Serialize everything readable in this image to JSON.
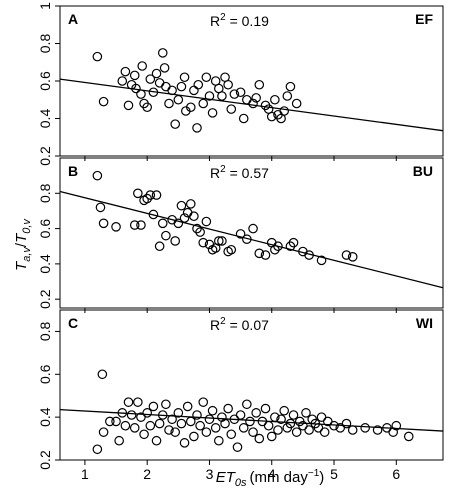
{
  "figure": {
    "ylabel": "T_{a,v}/T_{0,v}",
    "xlabel_main": "ET",
    "xlabel_sub": "0s",
    "xlabel_units": "(mm day",
    "xlabel_exp": "−1",
    "xlabel_close": ")"
  },
  "chart_data": [
    {
      "type": "scatter",
      "panel": "A",
      "site": "EF",
      "r2_text": "R",
      "r2_sup": "2",
      "r2_value": " = 0.19",
      "xlim": [
        0.6,
        6.75
      ],
      "ylim": [
        0.2,
        1.0
      ],
      "xticks": [
        1,
        2,
        3,
        4,
        5,
        6
      ],
      "yticks": [
        0.2,
        0.4,
        0.6,
        0.8,
        1
      ],
      "ytick_labels": [
        "0.2",
        "0.4",
        "0.6",
        "0.8",
        "1"
      ],
      "regression": {
        "x": [
          0.6,
          6.75
        ],
        "y": [
          0.61,
          0.335
        ]
      },
      "points": [
        [
          1.2,
          0.73
        ],
        [
          1.3,
          0.49
        ],
        [
          1.6,
          0.6
        ],
        [
          1.65,
          0.65
        ],
        [
          1.7,
          0.47
        ],
        [
          1.75,
          0.58
        ],
        [
          1.8,
          0.63
        ],
        [
          1.82,
          0.56
        ],
        [
          1.9,
          0.53
        ],
        [
          1.92,
          0.68
        ],
        [
          1.95,
          0.48
        ],
        [
          2.0,
          0.46
        ],
        [
          2.05,
          0.61
        ],
        [
          2.1,
          0.54
        ],
        [
          2.15,
          0.64
        ],
        [
          2.2,
          0.59
        ],
        [
          2.25,
          0.75
        ],
        [
          2.28,
          0.67
        ],
        [
          2.3,
          0.57
        ],
        [
          2.35,
          0.48
        ],
        [
          2.4,
          0.55
        ],
        [
          2.45,
          0.37
        ],
        [
          2.5,
          0.5
        ],
        [
          2.55,
          0.57
        ],
        [
          2.6,
          0.62
        ],
        [
          2.62,
          0.44
        ],
        [
          2.7,
          0.46
        ],
        [
          2.75,
          0.55
        ],
        [
          2.8,
          0.35
        ],
        [
          2.82,
          0.58
        ],
        [
          2.9,
          0.48
        ],
        [
          2.95,
          0.62
        ],
        [
          3.0,
          0.52
        ],
        [
          3.05,
          0.43
        ],
        [
          3.1,
          0.6
        ],
        [
          3.15,
          0.56
        ],
        [
          3.2,
          0.52
        ],
        [
          3.25,
          0.62
        ],
        [
          3.3,
          0.58
        ],
        [
          3.35,
          0.45
        ],
        [
          3.4,
          0.53
        ],
        [
          3.5,
          0.54
        ],
        [
          3.55,
          0.4
        ],
        [
          3.6,
          0.5
        ],
        [
          3.7,
          0.48
        ],
        [
          3.75,
          0.51
        ],
        [
          3.8,
          0.58
        ],
        [
          3.9,
          0.47
        ],
        [
          3.95,
          0.45
        ],
        [
          4.0,
          0.41
        ],
        [
          4.05,
          0.5
        ],
        [
          4.1,
          0.42
        ],
        [
          4.15,
          0.4
        ],
        [
          4.2,
          0.44
        ],
        [
          4.25,
          0.52
        ],
        [
          4.3,
          0.57
        ],
        [
          4.4,
          0.48
        ]
      ]
    },
    {
      "type": "scatter",
      "panel": "B",
      "site": "BU",
      "r2_text": "R",
      "r2_sup": "2",
      "r2_value": " = 0.57",
      "xlim": [
        0.6,
        6.75
      ],
      "ylim": [
        0.15,
        1.0
      ],
      "xticks": [
        1,
        2,
        3,
        4,
        5,
        6
      ],
      "yticks": [
        0.2,
        0.4,
        0.6,
        0.8
      ],
      "ytick_labels": [
        "0.2",
        "0.4",
        "0.6",
        "0.8"
      ],
      "regression": {
        "x": [
          0.6,
          6.75
        ],
        "y": [
          0.81,
          0.265
        ]
      },
      "points": [
        [
          1.2,
          0.9
        ],
        [
          1.25,
          0.72
        ],
        [
          1.3,
          0.63
        ],
        [
          1.5,
          0.61
        ],
        [
          1.8,
          0.62
        ],
        [
          1.85,
          0.8
        ],
        [
          1.9,
          0.62
        ],
        [
          1.95,
          0.76
        ],
        [
          2.0,
          0.77
        ],
        [
          2.05,
          0.79
        ],
        [
          2.1,
          0.68
        ],
        [
          2.15,
          0.79
        ],
        [
          2.2,
          0.5
        ],
        [
          2.25,
          0.63
        ],
        [
          2.3,
          0.56
        ],
        [
          2.4,
          0.65
        ],
        [
          2.45,
          0.53
        ],
        [
          2.5,
          0.63
        ],
        [
          2.55,
          0.73
        ],
        [
          2.6,
          0.66
        ],
        [
          2.65,
          0.69
        ],
        [
          2.7,
          0.74
        ],
        [
          2.75,
          0.67
        ],
        [
          2.8,
          0.6
        ],
        [
          2.85,
          0.58
        ],
        [
          2.9,
          0.52
        ],
        [
          2.95,
          0.64
        ],
        [
          3.0,
          0.51
        ],
        [
          3.05,
          0.48
        ],
        [
          3.1,
          0.49
        ],
        [
          3.15,
          0.53
        ],
        [
          3.2,
          0.53
        ],
        [
          3.3,
          0.47
        ],
        [
          3.35,
          0.48
        ],
        [
          3.5,
          0.57
        ],
        [
          3.6,
          0.54
        ],
        [
          3.7,
          0.6
        ],
        [
          3.8,
          0.46
        ],
        [
          3.9,
          0.45
        ],
        [
          4.0,
          0.52
        ],
        [
          4.05,
          0.48
        ],
        [
          4.1,
          0.5
        ],
        [
          4.3,
          0.5
        ],
        [
          4.35,
          0.52
        ],
        [
          4.5,
          0.47
        ],
        [
          4.6,
          0.45
        ],
        [
          4.8,
          0.42
        ],
        [
          5.2,
          0.45
        ],
        [
          5.3,
          0.44
        ]
      ]
    },
    {
      "type": "scatter",
      "panel": "C",
      "site": "WI",
      "r2_text": "R",
      "r2_sup": "2",
      "r2_value": " = 0.07",
      "xlim": [
        0.6,
        6.75
      ],
      "ylim": [
        0.2,
        0.9
      ],
      "xticks": [
        1,
        2,
        3,
        4,
        5,
        6
      ],
      "yticks": [
        0.2,
        0.4,
        0.6,
        0.8
      ],
      "ytick_labels": [
        "0.2",
        "0.4",
        "0.6",
        "0.8"
      ],
      "regression": {
        "x": [
          0.6,
          6.75
        ],
        "y": [
          0.435,
          0.335
        ]
      },
      "points": [
        [
          1.2,
          0.25
        ],
        [
          1.28,
          0.6
        ],
        [
          1.3,
          0.33
        ],
        [
          1.4,
          0.38
        ],
        [
          1.5,
          0.38
        ],
        [
          1.55,
          0.29
        ],
        [
          1.6,
          0.42
        ],
        [
          1.65,
          0.36
        ],
        [
          1.7,
          0.47
        ],
        [
          1.75,
          0.41
        ],
        [
          1.8,
          0.35
        ],
        [
          1.85,
          0.47
        ],
        [
          1.9,
          0.4
        ],
        [
          1.95,
          0.32
        ],
        [
          2.0,
          0.42
        ],
        [
          2.05,
          0.36
        ],
        [
          2.1,
          0.45
        ],
        [
          2.15,
          0.29
        ],
        [
          2.2,
          0.37
        ],
        [
          2.25,
          0.41
        ],
        [
          2.3,
          0.46
        ],
        [
          2.35,
          0.34
        ],
        [
          2.4,
          0.39
        ],
        [
          2.45,
          0.33
        ],
        [
          2.5,
          0.42
        ],
        [
          2.55,
          0.37
        ],
        [
          2.6,
          0.28
        ],
        [
          2.65,
          0.45
        ],
        [
          2.7,
          0.38
        ],
        [
          2.75,
          0.31
        ],
        [
          2.8,
          0.41
        ],
        [
          2.85,
          0.36
        ],
        [
          2.9,
          0.47
        ],
        [
          2.95,
          0.33
        ],
        [
          3.0,
          0.39
        ],
        [
          3.05,
          0.43
        ],
        [
          3.1,
          0.35
        ],
        [
          3.15,
          0.29
        ],
        [
          3.2,
          0.4
        ],
        [
          3.25,
          0.37
        ],
        [
          3.3,
          0.44
        ],
        [
          3.35,
          0.32
        ],
        [
          3.4,
          0.39
        ],
        [
          3.45,
          0.26
        ],
        [
          3.5,
          0.41
        ],
        [
          3.55,
          0.35
        ],
        [
          3.6,
          0.46
        ],
        [
          3.65,
          0.38
        ],
        [
          3.7,
          0.33
        ],
        [
          3.75,
          0.42
        ],
        [
          3.8,
          0.3
        ],
        [
          3.85,
          0.38
        ],
        [
          3.9,
          0.44
        ],
        [
          3.95,
          0.36
        ],
        [
          4.0,
          0.31
        ],
        [
          4.05,
          0.4
        ],
        [
          4.1,
          0.34
        ],
        [
          4.15,
          0.39
        ],
        [
          4.2,
          0.43
        ],
        [
          4.25,
          0.35
        ],
        [
          4.3,
          0.37
        ],
        [
          4.35,
          0.41
        ],
        [
          4.4,
          0.33
        ],
        [
          4.45,
          0.38
        ],
        [
          4.5,
          0.36
        ],
        [
          4.55,
          0.42
        ],
        [
          4.6,
          0.34
        ],
        [
          4.65,
          0.39
        ],
        [
          4.7,
          0.37
        ],
        [
          4.75,
          0.35
        ],
        [
          4.8,
          0.4
        ],
        [
          4.85,
          0.33
        ],
        [
          4.9,
          0.38
        ],
        [
          5.0,
          0.36
        ],
        [
          5.1,
          0.35
        ],
        [
          5.2,
          0.37
        ],
        [
          5.3,
          0.34
        ],
        [
          5.5,
          0.35
        ],
        [
          5.7,
          0.34
        ],
        [
          5.85,
          0.35
        ],
        [
          5.95,
          0.33
        ],
        [
          6.0,
          0.36
        ],
        [
          6.2,
          0.31
        ]
      ]
    }
  ]
}
